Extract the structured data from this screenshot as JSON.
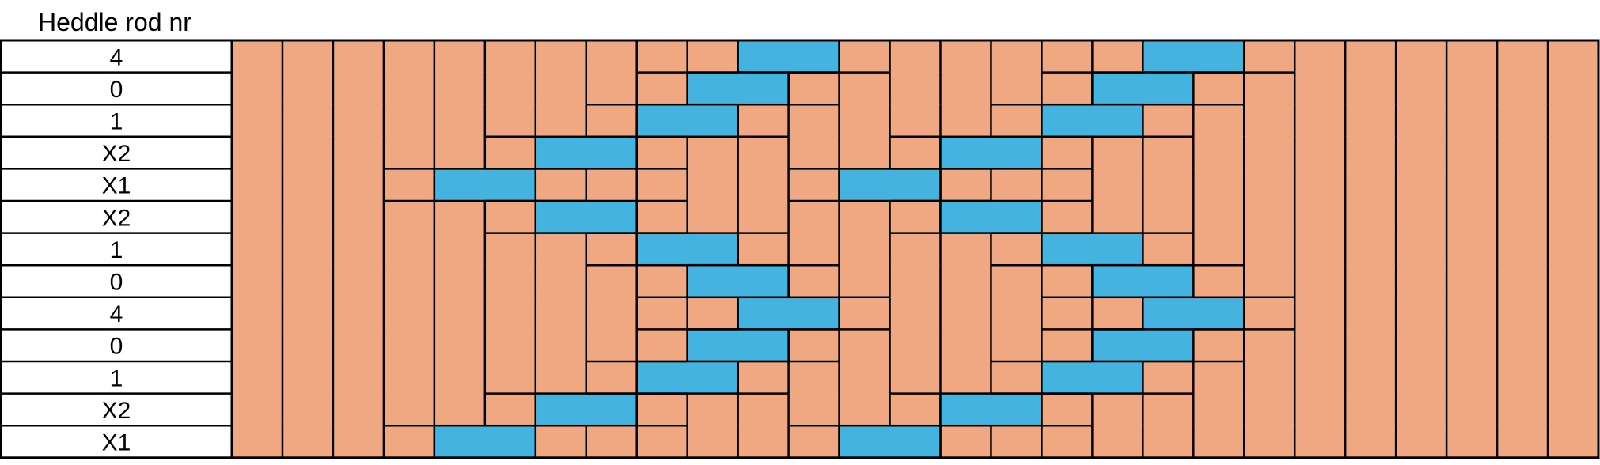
{
  "header": {
    "title": "Heddle rod nr"
  },
  "draft": {
    "columns": 27,
    "colors": {
      "background_cell": "#F0A882",
      "lifted_cell": "#45B3E0",
      "grid_line": "#000000",
      "label_bg": "#FFFFFF"
    },
    "rows": [
      {
        "label": "4",
        "lifted_pairs": [
          10,
          18
        ]
      },
      {
        "label": "0",
        "lifted_pairs": [
          9,
          17
        ]
      },
      {
        "label": "1",
        "lifted_pairs": [
          8,
          16
        ]
      },
      {
        "label": "X2",
        "lifted_pairs": [
          6,
          14
        ]
      },
      {
        "label": "X1",
        "lifted_pairs": [
          4,
          12
        ]
      },
      {
        "label": "X2",
        "lifted_pairs": [
          6,
          14
        ]
      },
      {
        "label": "1",
        "lifted_pairs": [
          8,
          16
        ]
      },
      {
        "label": "0",
        "lifted_pairs": [
          9,
          17
        ]
      },
      {
        "label": "4",
        "lifted_pairs": [
          10,
          18
        ]
      },
      {
        "label": "0",
        "lifted_pairs": [
          9,
          17
        ]
      },
      {
        "label": "1",
        "lifted_pairs": [
          8,
          16
        ]
      },
      {
        "label": "X2",
        "lifted_pairs": [
          6,
          14
        ]
      },
      {
        "label": "X1",
        "lifted_pairs": [
          4,
          12
        ]
      }
    ]
  }
}
